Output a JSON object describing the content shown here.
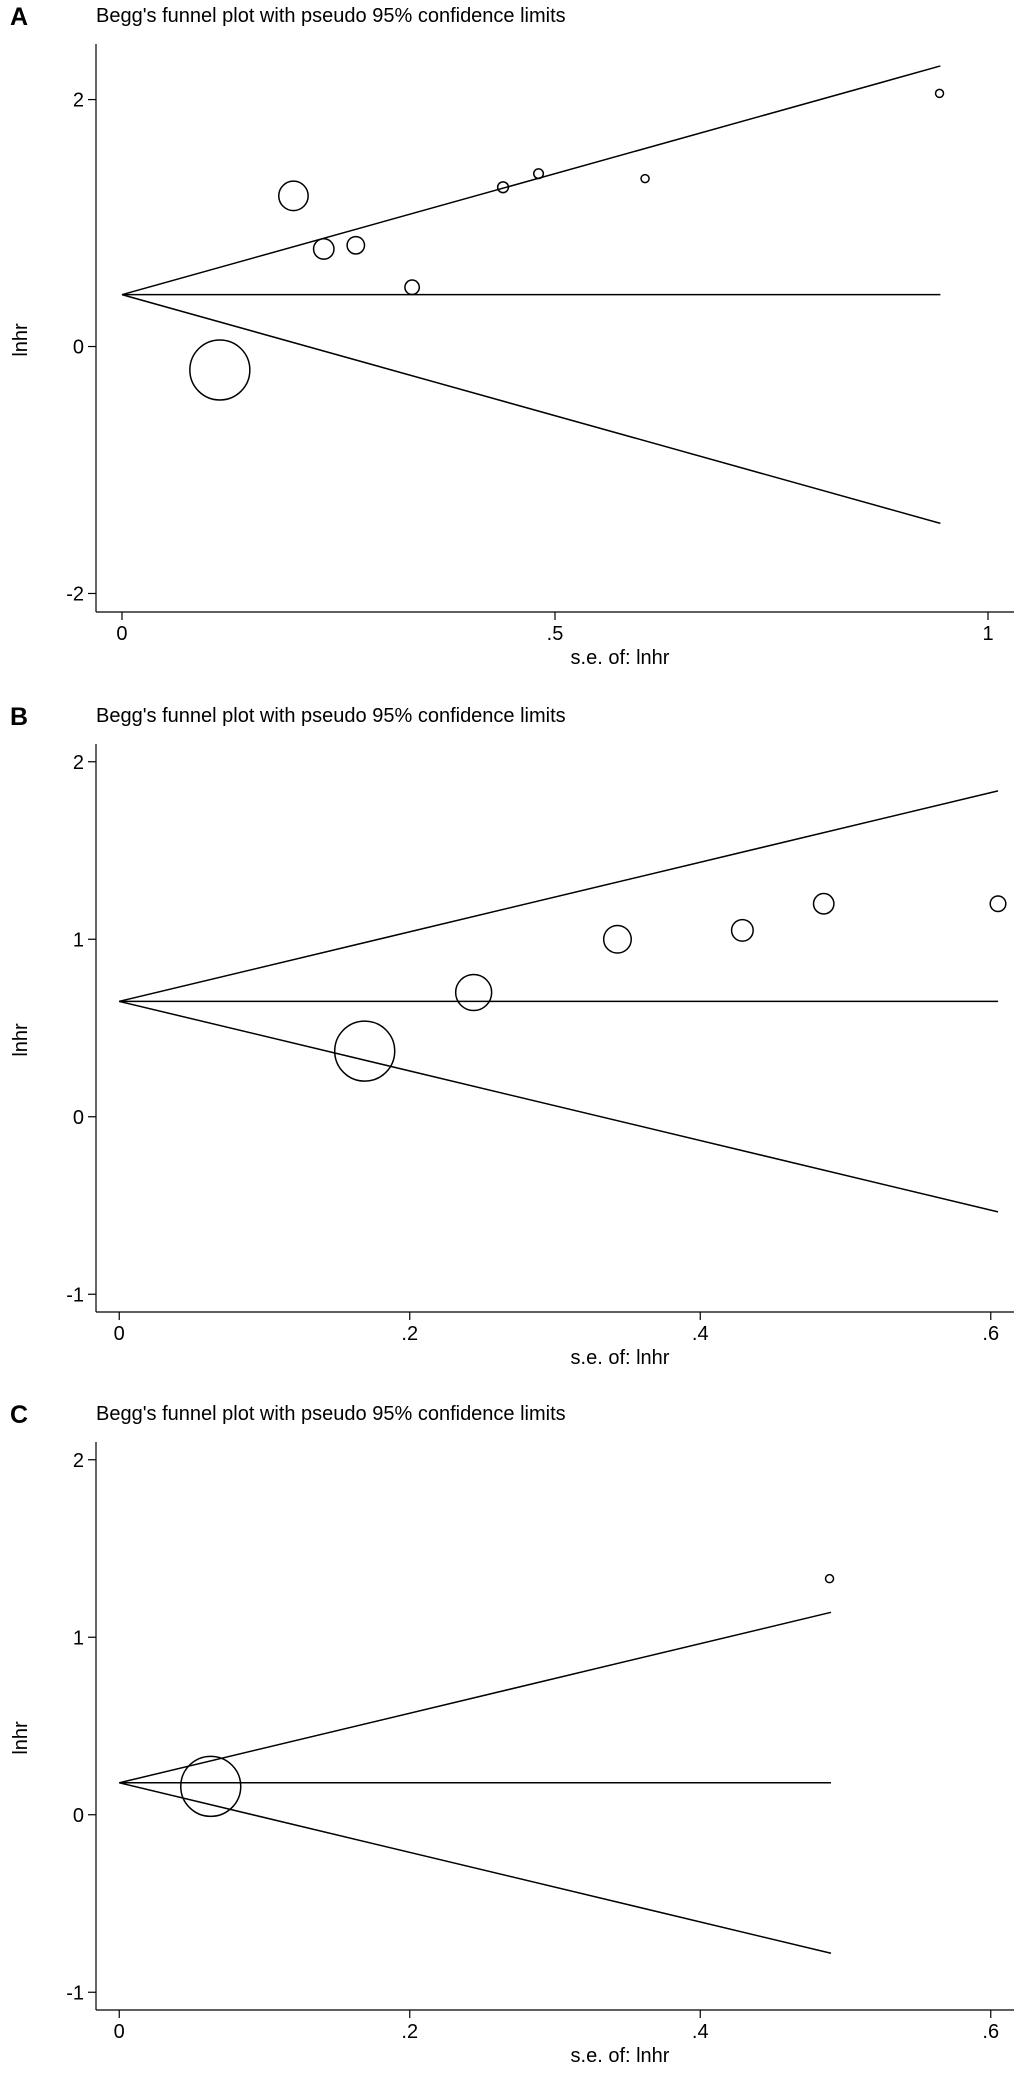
{
  "chart_data": [
    {
      "type": "scatter",
      "panel_label": "A",
      "title": "Begg's funnel plot with pseudo 95% confidence limits",
      "xlabel": "s.e. of: lnhr",
      "ylabel": "lnhr",
      "xlim": [
        -0.03,
        1.03
      ],
      "ylim": [
        -2.15,
        2.45
      ],
      "xticks": [
        {
          "value": 0,
          "label": "0"
        },
        {
          "value": 0.5,
          "label": ".5"
        },
        {
          "value": 1,
          "label": "1"
        }
      ],
      "yticks": [
        {
          "value": -2,
          "label": "-2"
        },
        {
          "value": 0,
          "label": "0"
        },
        {
          "value": 2,
          "label": "2"
        }
      ],
      "pooled_estimate": 0.42,
      "max_se": 0.945,
      "grid": false,
      "legend": "none",
      "points": [
        {
          "x": 0.113,
          "y": -0.19,
          "weight": 1.0
        },
        {
          "x": 0.198,
          "y": 1.22,
          "weight": 0.49
        },
        {
          "x": 0.233,
          "y": 0.79,
          "weight": 0.34
        },
        {
          "x": 0.27,
          "y": 0.82,
          "weight": 0.29
        },
        {
          "x": 0.335,
          "y": 0.48,
          "weight": 0.24
        },
        {
          "x": 0.44,
          "y": 1.29,
          "weight": 0.18
        },
        {
          "x": 0.481,
          "y": 1.4,
          "weight": 0.16
        },
        {
          "x": 0.604,
          "y": 1.36,
          "weight": 0.13
        },
        {
          "x": 0.944,
          "y": 2.05,
          "weight": 0.09
        }
      ]
    },
    {
      "type": "scatter",
      "panel_label": "B",
      "title": "Begg's funnel plot with pseudo 95% confidence limits",
      "xlabel": "s.e. of: lnhr",
      "ylabel": "lnhr",
      "xlim": [
        -0.016,
        0.616
      ],
      "ylim": [
        -1.1,
        2.1
      ],
      "xticks": [
        {
          "value": 0,
          "label": "0"
        },
        {
          "value": 0.2,
          "label": ".2"
        },
        {
          "value": 0.4,
          "label": ".4"
        },
        {
          "value": 0.6,
          "label": ".6"
        }
      ],
      "yticks": [
        {
          "value": -1,
          "label": "-1"
        },
        {
          "value": 0,
          "label": "0"
        },
        {
          "value": 1,
          "label": "1"
        },
        {
          "value": 2,
          "label": "2"
        }
      ],
      "pooled_estimate": 0.65,
      "max_se": 0.605,
      "grid": false,
      "legend": "none",
      "points": [
        {
          "x": 0.169,
          "y": 0.37,
          "weight": 1.0
        },
        {
          "x": 0.244,
          "y": 0.7,
          "weight": 0.6
        },
        {
          "x": 0.343,
          "y": 1.0,
          "weight": 0.46
        },
        {
          "x": 0.429,
          "y": 1.05,
          "weight": 0.36
        },
        {
          "x": 0.485,
          "y": 1.2,
          "weight": 0.34
        },
        {
          "x": 0.605,
          "y": 1.2,
          "weight": 0.26
        }
      ]
    },
    {
      "type": "scatter",
      "panel_label": "C",
      "title": "Begg's funnel plot with pseudo 95% confidence limits",
      "xlabel": "s.e. of: lnhr",
      "ylabel": "lnhr",
      "xlim": [
        -0.016,
        0.616
      ],
      "ylim": [
        -1.1,
        2.1
      ],
      "xticks": [
        {
          "value": 0,
          "label": "0"
        },
        {
          "value": 0.2,
          "label": ".2"
        },
        {
          "value": 0.4,
          "label": ".4"
        },
        {
          "value": 0.6,
          "label": ".6"
        }
      ],
      "yticks": [
        {
          "value": -1,
          "label": "-1"
        },
        {
          "value": 0,
          "label": "0"
        },
        {
          "value": 1,
          "label": "1"
        },
        {
          "value": 2,
          "label": "2"
        }
      ],
      "pooled_estimate": 0.18,
      "max_se": 0.49,
      "grid": false,
      "legend": "none",
      "points": [
        {
          "x": 0.063,
          "y": 0.16,
          "weight": 1.0
        },
        {
          "x": 0.489,
          "y": 1.33,
          "weight": 0.13
        }
      ]
    }
  ]
}
